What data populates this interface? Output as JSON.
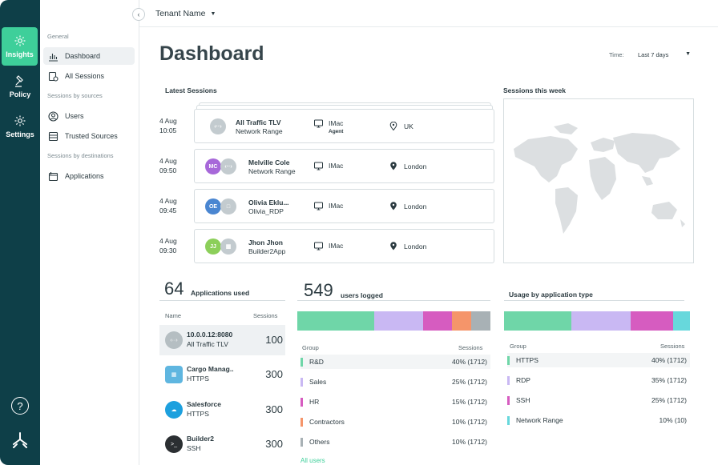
{
  "rail": {
    "items": [
      {
        "label": "Insights",
        "icon": "gear-icon",
        "active": true
      },
      {
        "label": "Policy",
        "icon": "gavel-icon",
        "active": false
      },
      {
        "label": "Settings",
        "icon": "gear-icon",
        "active": false
      }
    ],
    "help": "?"
  },
  "sidebar": {
    "general_heading": "General",
    "dashboard": "Dashboard",
    "all_sessions": "All Sessions",
    "sources_heading": "Sessions by sources",
    "users": "Users",
    "trusted_sources": "Trusted Sources",
    "destinations_heading": "Sessions by destinations",
    "applications": "Applications"
  },
  "topbar": {
    "tenant": "Tenant Name"
  },
  "page": {
    "title": "Dashboard",
    "time_label": "Time:",
    "time_value": "Last 7 days"
  },
  "latest_sessions": {
    "title": "Latest Sessions",
    "rows": [
      {
        "date": "4 Aug",
        "time": "10:05",
        "initials": "",
        "name": "All Traffic TLV",
        "sub": "Network Range",
        "device": "IMac",
        "device_tag": "Agent",
        "location": "UK"
      },
      {
        "date": "4 Aug",
        "time": "09:50",
        "initials": "MC",
        "name": "Melville Cole",
        "sub": "Network Range",
        "device": "IMac",
        "device_tag": "",
        "location": "London"
      },
      {
        "date": "4 Aug",
        "time": "09:45",
        "initials": "OE",
        "name": "Olivia Eklu...",
        "sub": "Olivia_RDP",
        "device": "IMac",
        "device_tag": "",
        "location": "London"
      },
      {
        "date": "4 Aug",
        "time": "09:30",
        "initials": "JJ",
        "name": "Jhon Jhon",
        "sub": "Builder2App",
        "device": "IMac",
        "device_tag": "",
        "location": "London"
      }
    ]
  },
  "sessions_week": {
    "title": "Sessions this week"
  },
  "applications": {
    "count": "64",
    "label": "Applications used",
    "col_name": "Name",
    "col_sessions": "Sessions",
    "rows": [
      {
        "name": "10.0.0.12:8080",
        "sub": "All Traffic TLV",
        "count": "100",
        "icon": "network-icon"
      },
      {
        "name": "Cargo Manag..",
        "sub": "HTTPS",
        "count": "300",
        "icon": "cargo-icon"
      },
      {
        "name": "Salesforce",
        "sub": "HTTPS",
        "count": "300",
        "icon": "salesforce-icon"
      },
      {
        "name": "Builder2",
        "sub": "SSH",
        "count": "300",
        "icon": "terminal-icon"
      }
    ]
  },
  "users_logged": {
    "count": "549",
    "label": "users logged",
    "col_group": "Group",
    "col_sessions": "Sessions",
    "rows": [
      {
        "group": "R&D",
        "value": "40% (1712)",
        "share": 40,
        "color": "#6fd6a8"
      },
      {
        "group": "Sales",
        "value": "25% (1712)",
        "share": 25,
        "color": "#c9b8f3"
      },
      {
        "group": "HR",
        "value": "15% (1712)",
        "share": 15,
        "color": "#d65cc0"
      },
      {
        "group": "Contractors",
        "value": "10% (1712)",
        "share": 10,
        "color": "#f5956a"
      },
      {
        "group": "Others",
        "value": "10% (1712)",
        "share": 10,
        "color": "#a8b1b5"
      }
    ],
    "all_users_link": "All users"
  },
  "usage_by_type": {
    "title": "Usage by application type",
    "col_group": "Group",
    "col_sessions": "Sessions",
    "rows": [
      {
        "group": "HTTPS",
        "value": "40% (1712)",
        "share": 40,
        "color": "#6fd6a8"
      },
      {
        "group": "RDP",
        "value": "35% (1712)",
        "share": 35,
        "color": "#c9b8f3"
      },
      {
        "group": "SSH",
        "value": "25% (1712)",
        "share": 25,
        "color": "#d65cc0"
      },
      {
        "group": "Network Range",
        "value": "10% (10)",
        "share": 10,
        "color": "#67d8dc"
      }
    ]
  },
  "colors": {
    "accent": "#3ecf9a",
    "rail": "#0e3f48"
  }
}
